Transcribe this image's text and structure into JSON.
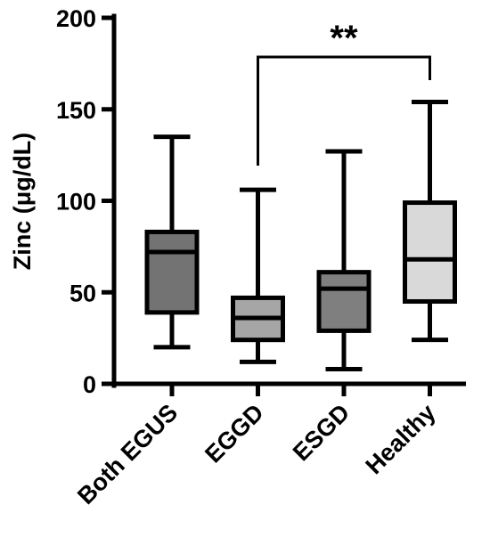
{
  "chart_data": {
    "type": "box",
    "ylabel": "Zinc (μg/dL)",
    "xlabel": "",
    "ylim": [
      0,
      200
    ],
    "yticks": [
      0,
      50,
      100,
      150,
      200
    ],
    "categories": [
      "Both EGUS",
      "EGGD",
      "ESGD",
      "Healthy"
    ],
    "boxes": [
      {
        "category": "Both EGUS",
        "min": 20,
        "q1": 39,
        "median": 72,
        "q3": 83,
        "max": 135,
        "color": "#737373"
      },
      {
        "category": "EGGD",
        "min": 12,
        "q1": 24,
        "median": 36,
        "q3": 47,
        "max": 106,
        "color": "#a6a6a6"
      },
      {
        "category": "ESGD",
        "min": 8,
        "q1": 29,
        "median": 52,
        "q3": 61,
        "max": 127,
        "color": "#7f7f7f"
      },
      {
        "category": "Healthy",
        "min": 24,
        "q1": 45,
        "median": 68,
        "q3": 99,
        "max": 154,
        "color": "#d9d9d9"
      }
    ],
    "significance": [
      {
        "from": "EGGD",
        "to": "Healthy",
        "label": "**"
      }
    ]
  }
}
